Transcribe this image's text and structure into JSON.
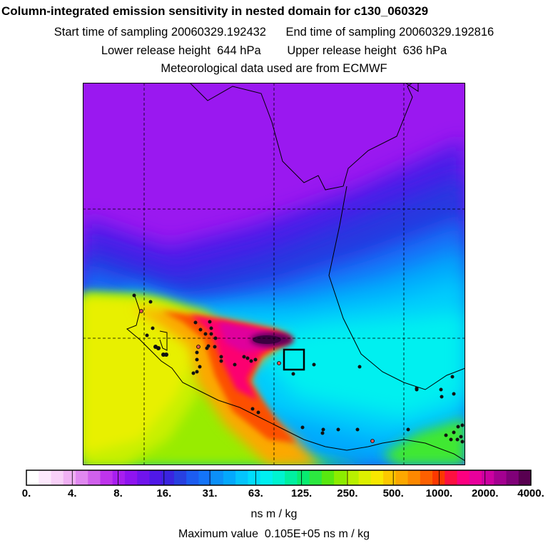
{
  "title": "Column-integrated emission sensitivity in nested domain for c130_060329",
  "line2": "Start time of sampling 20060329.192432      End time of sampling 20060329.192816",
  "line3": "Lower release height  644 hPa        Upper release height  636 hPa",
  "line4": "Meteorological data used are from ECMWF",
  "chart_data": {
    "type": "heatmap",
    "title": "Column-integrated emission sensitivity in nested domain for c130_060329",
    "colorbar": {
      "tick_labels": [
        "0.",
        "4.",
        "8.",
        "16.",
        "31.",
        "63.",
        "125.",
        "250.",
        "500.",
        "1000.",
        "2000.",
        "4000."
      ],
      "tick_values": [
        0,
        4,
        8,
        16,
        31,
        63,
        125,
        250,
        500,
        1000,
        2000,
        4000
      ],
      "units": "ns m / kg",
      "scale": "logarithmic",
      "colors": [
        "#ffffff",
        "#fce8fc",
        "#f8d0f8",
        "#f0b0f4",
        "#e088f0",
        "#d060ec",
        "#bf34ec",
        "#a81ef0",
        "#8f14f0",
        "#7014ec",
        "#5018e8",
        "#3a24e0",
        "#2840e0",
        "#1c5cf0",
        "#1474f8",
        "#0c90f8",
        "#04a8fc",
        "#04c4fc",
        "#00dcfc",
        "#00f0f0",
        "#00f4d0",
        "#00f0a0",
        "#08ec70",
        "#2ce840",
        "#58e810",
        "#8cec00",
        "#b8f000",
        "#ddf000",
        "#f8e800",
        "#fcc800",
        "#fca800",
        "#fc8800",
        "#fc6000",
        "#fc3800",
        "#fc1040",
        "#fc0080",
        "#e8009c",
        "#cc00a0",
        "#a40090",
        "#800078",
        "#580050"
      ]
    },
    "max_value_text": "Maximum value  0.105E+05 ns m / kg",
    "max_value": 10500,
    "release_box": "receptor location (square)",
    "meteorology": "ECMWF"
  },
  "colors": {
    "background": "#ffffff",
    "coastline": "#000000",
    "gridline": "#000000"
  }
}
